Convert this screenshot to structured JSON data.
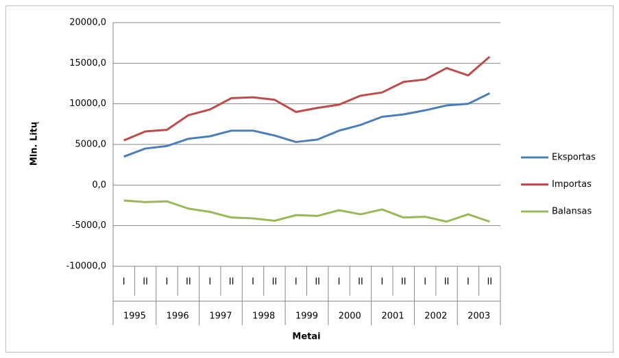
{
  "chart_data": {
    "type": "line",
    "y_axis_label": "Mln. Litų",
    "x_axis_label": "Metai",
    "categories": [
      "I",
      "II",
      "I",
      "II",
      "I",
      "II",
      "I",
      "II",
      "I",
      "II",
      "I",
      "II",
      "I",
      "II",
      "I",
      "II",
      "I",
      "II"
    ],
    "category_groups": [
      "1995",
      "1996",
      "1997",
      "1998",
      "1999",
      "2000",
      "2001",
      "2002",
      "2003"
    ],
    "series": [
      {
        "name": "Eksportas",
        "color": "#4a7ebb",
        "values": [
          3500,
          4500,
          4800,
          5700,
          6000,
          6700,
          6700,
          6100,
          5300,
          5600,
          6700,
          7400,
          8400,
          8700,
          9200,
          9800,
          10000,
          11300
        ]
      },
      {
        "name": "Importas",
        "color": "#be4b48",
        "values": [
          5500,
          6600,
          6800,
          8600,
          9300,
          10700,
          10800,
          10500,
          9000,
          9500,
          9900,
          11000,
          11400,
          12700,
          13000,
          14400,
          13500,
          15800
        ]
      },
      {
        "name": "Balansas",
        "color": "#98b954",
        "values": [
          -1900,
          -2100,
          -2000,
          -2900,
          -3300,
          -4000,
          -4100,
          -4400,
          -3700,
          -3800,
          -3100,
          -3600,
          -3000,
          -4000,
          -3900,
          -4500,
          -3600,
          -4500
        ]
      }
    ],
    "ylim": [
      -10000,
      20000
    ],
    "yticks": [
      {
        "value": -10000,
        "label": "-10000,0"
      },
      {
        "value": -5000,
        "label": "-5000,0"
      },
      {
        "value": 0,
        "label": "0,0"
      },
      {
        "value": 5000,
        "label": "5000,0"
      },
      {
        "value": 10000,
        "label": "10000,0"
      },
      {
        "value": 15000,
        "label": "15000,0"
      },
      {
        "value": 20000,
        "label": "20000,0"
      }
    ],
    "grid": true,
    "legend": "right"
  }
}
